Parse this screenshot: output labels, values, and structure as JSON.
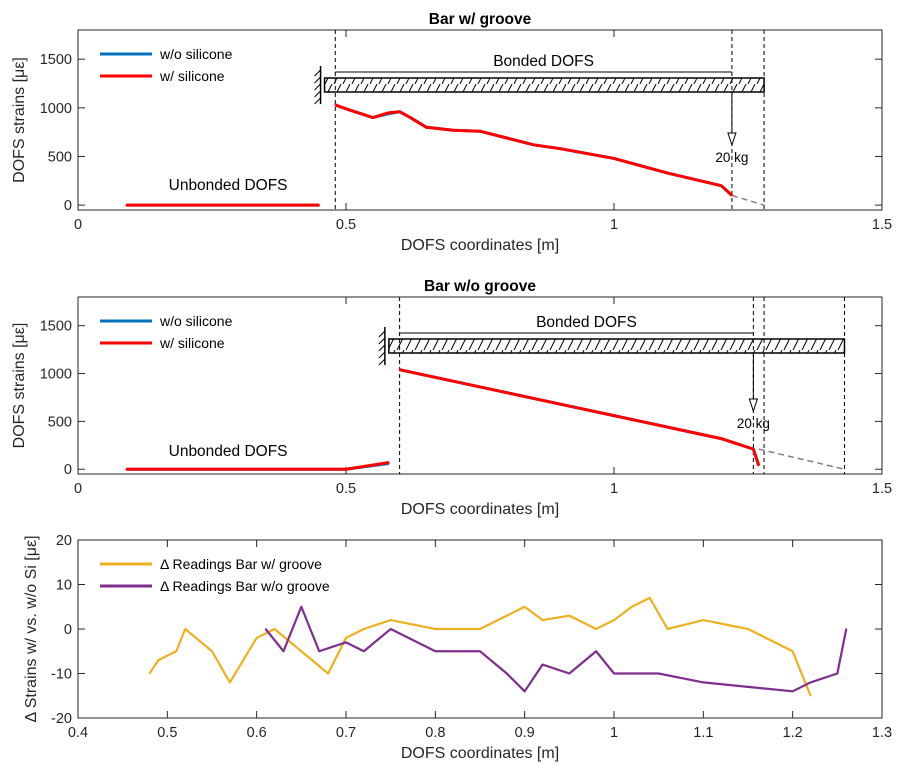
{
  "chart_data": [
    {
      "type": "line",
      "title": "Bar w/ groove",
      "xlabel": "DOFS coordinates [m]",
      "ylabel": "DOFS strains [με]",
      "xlim": [
        0,
        1.5
      ],
      "ylim": [
        -50,
        1800
      ],
      "xticks": [
        "0",
        "0.5",
        "1",
        "1.5"
      ],
      "yticks": [
        "0",
        "500",
        "1000",
        "1500"
      ],
      "legend": {
        "position": "top-left",
        "entries": [
          "w/o silicone",
          "w/ silicone"
        ]
      },
      "colors": {
        "w/o silicone": "#0072BD",
        "w/ silicone": "#FF0000",
        "extrapolation": "#808080"
      },
      "series": [
        {
          "name": "w/o silicone",
          "x": [
            0.09,
            0.2,
            0.3,
            0.45,
            0.48,
            0.5,
            0.55,
            0.58,
            0.6,
            0.62,
            0.65,
            0.7,
            0.75,
            0.8,
            0.85,
            0.9,
            1.0,
            1.1,
            1.2,
            1.22
          ],
          "y": [
            0,
            0,
            0,
            0,
            1030,
            990,
            900,
            940,
            960,
            900,
            800,
            770,
            760,
            690,
            620,
            580,
            480,
            330,
            200,
            100
          ]
        },
        {
          "name": "w/ silicone",
          "x": [
            0.09,
            0.2,
            0.3,
            0.45,
            0.48,
            0.5,
            0.55,
            0.58,
            0.6,
            0.62,
            0.65,
            0.7,
            0.75,
            0.8,
            0.85,
            0.9,
            1.0,
            1.1,
            1.2,
            1.22
          ],
          "y": [
            0,
            0,
            0,
            0,
            1030,
            990,
            900,
            950,
            960,
            900,
            800,
            770,
            760,
            690,
            620,
            580,
            480,
            330,
            200,
            100
          ]
        }
      ],
      "extrapolation": {
        "x": [
          1.22,
          1.28
        ],
        "y": [
          100,
          0
        ]
      },
      "annotations": {
        "bonded_label": "Bonded DOFS",
        "unbonded_label": "Unbonded DOFS",
        "load_label": "20 kg"
      },
      "guide_lines_x": [
        0.48,
        1.22,
        1.28
      ]
    },
    {
      "type": "line",
      "title": "Bar w/o groove",
      "xlabel": "DOFS coordinates [m]",
      "ylabel": "DOFS strains [με]",
      "xlim": [
        0,
        1.5
      ],
      "ylim": [
        -50,
        1800
      ],
      "xticks": [
        "0",
        "0.5",
        "1",
        "1.5"
      ],
      "yticks": [
        "0",
        "500",
        "1000",
        "1500"
      ],
      "legend": {
        "position": "top-left",
        "entries": [
          "w/o silicone",
          "w/ silicone"
        ]
      },
      "colors": {
        "w/o silicone": "#0072BD",
        "w/ silicone": "#FF0000",
        "extrapolation": "#808080"
      },
      "series": [
        {
          "name": "w/o silicone",
          "x": [
            0.09,
            0.3,
            0.5,
            0.58,
            0.6,
            0.7,
            0.8,
            0.9,
            1.0,
            1.1,
            1.2,
            1.26,
            1.27
          ],
          "y": [
            0,
            0,
            0,
            60,
            1040,
            920,
            800,
            680,
            560,
            440,
            320,
            210,
            40
          ]
        },
        {
          "name": "w/ silicone",
          "x": [
            0.09,
            0.3,
            0.5,
            0.58,
            0.6,
            0.7,
            0.8,
            0.9,
            1.0,
            1.1,
            1.2,
            1.26,
            1.27
          ],
          "y": [
            0,
            0,
            0,
            70,
            1040,
            920,
            800,
            680,
            560,
            440,
            320,
            210,
            40
          ]
        }
      ],
      "extrapolation": {
        "x": [
          1.27,
          1.43
        ],
        "y": [
          210,
          0
        ]
      },
      "annotations": {
        "bonded_label": "Bonded DOFS",
        "unbonded_label": "Unbonded DOFS",
        "load_label": "20 kg"
      },
      "guide_lines_x": [
        0.6,
        1.26,
        1.28,
        1.43
      ]
    },
    {
      "type": "line",
      "title": "",
      "xlabel": "DOFS coordinates [m]",
      "ylabel": "Δ Strains w/ vs. w/o Si [με]",
      "xlim": [
        0.4,
        1.3
      ],
      "ylim": [
        -20,
        20
      ],
      "xticks": [
        "0.4",
        "0.5",
        "0.6",
        "0.7",
        "0.8",
        "0.9",
        "1",
        "1.1",
        "1.2",
        "1.3"
      ],
      "yticks": [
        "-20",
        "-10",
        "0",
        "10",
        "20"
      ],
      "legend": {
        "position": "top-left",
        "entries": [
          "Δ Readings Bar w/ groove",
          "Δ Readings Bar w/o groove"
        ]
      },
      "colors": {
        "Δ Readings Bar w/ groove": "#EDB120",
        "Δ Readings Bar w/o groove": "#7E2F8E"
      },
      "series": [
        {
          "name": "Δ Readings Bar w/ groove",
          "x": [
            0.48,
            0.49,
            0.51,
            0.52,
            0.55,
            0.57,
            0.6,
            0.62,
            0.65,
            0.68,
            0.7,
            0.72,
            0.75,
            0.8,
            0.85,
            0.88,
            0.9,
            0.92,
            0.95,
            0.98,
            1.0,
            1.02,
            1.04,
            1.06,
            1.1,
            1.15,
            1.2,
            1.22
          ],
          "y": [
            -10,
            -7,
            -5,
            0,
            -5,
            -12,
            -2,
            0,
            -5,
            -10,
            -2,
            0,
            2,
            0,
            0,
            3,
            5,
            2,
            3,
            0,
            2,
            5,
            7,
            0,
            2,
            0,
            -5,
            -15
          ]
        },
        {
          "name": "Δ Readings Bar w/o groove",
          "x": [
            0.61,
            0.63,
            0.65,
            0.67,
            0.7,
            0.72,
            0.75,
            0.8,
            0.85,
            0.88,
            0.9,
            0.92,
            0.95,
            0.98,
            1.0,
            1.05,
            1.1,
            1.15,
            1.2,
            1.22,
            1.25,
            1.26
          ],
          "y": [
            0,
            -5,
            5,
            -5,
            -3,
            -5,
            0,
            -5,
            -5,
            -10,
            -14,
            -8,
            -10,
            -5,
            -10,
            -10,
            -12,
            -13,
            -14,
            -12,
            -10,
            0
          ]
        }
      ]
    }
  ]
}
